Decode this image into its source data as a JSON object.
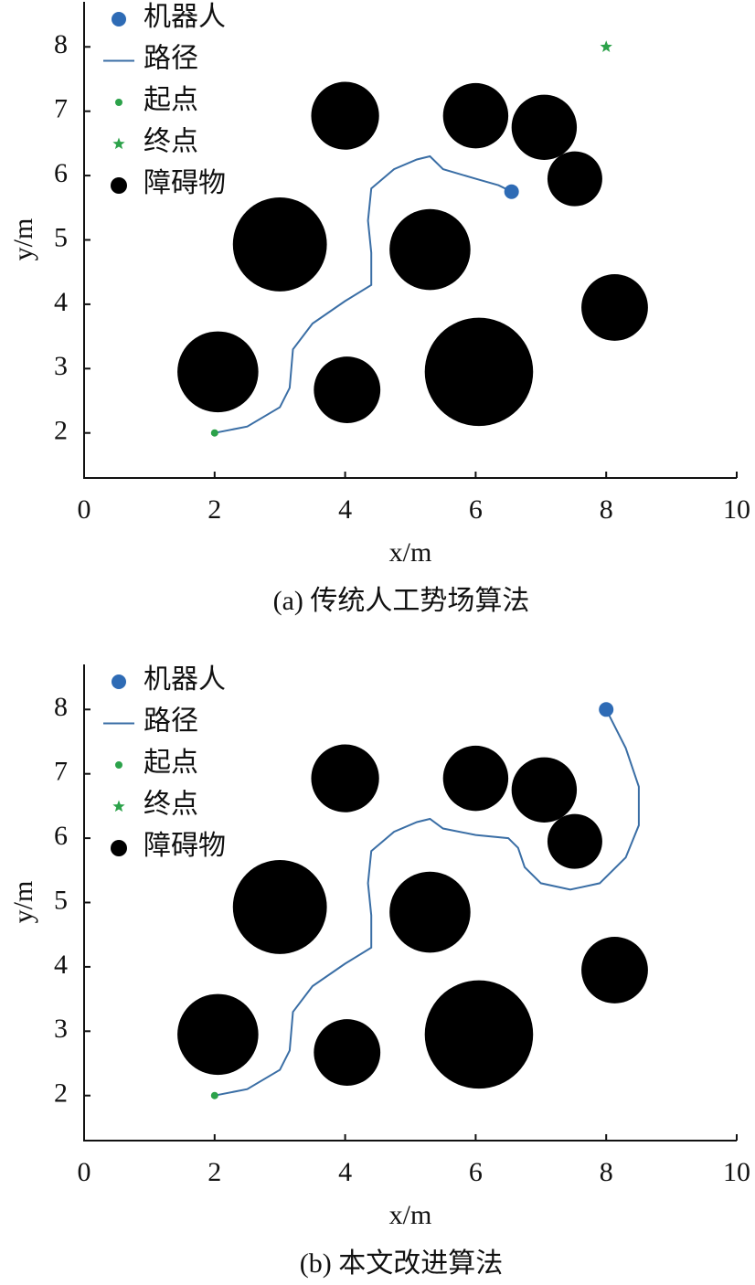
{
  "chart_data": [
    {
      "type": "path-planning",
      "caption": "(a) 传统人工势场算法",
      "xlabel": "x/m",
      "ylabel": "y/m",
      "xlim": [
        0,
        10
      ],
      "ylim": [
        1.3,
        8.7
      ],
      "xticks": [
        0,
        2,
        4,
        6,
        8,
        10
      ],
      "yticks": [
        2,
        3,
        4,
        5,
        6,
        7,
        8
      ],
      "legend": "upper left",
      "series": [
        {
          "name": "机器人",
          "marker": "circle",
          "color": "#2e6bb5",
          "x": [
            6.55
          ],
          "values": [
            5.75
          ]
        },
        {
          "name": "路径",
          "marker": "line",
          "color": "#3a6ea5",
          "x": [
            2,
            2.5,
            3.0,
            3.15,
            3.2,
            3.5,
            4.0,
            4.4,
            4.4,
            4.35,
            4.4,
            4.75,
            5.1,
            5.3,
            5.5,
            6.0,
            6.35,
            6.55
          ],
          "values": [
            2,
            2.1,
            2.4,
            2.7,
            3.3,
            3.7,
            4.05,
            4.3,
            4.8,
            5.3,
            5.8,
            6.1,
            6.25,
            6.3,
            6.1,
            5.95,
            5.85,
            5.75
          ]
        },
        {
          "name": "起点",
          "marker": "dot",
          "color": "#2ca24a",
          "x": [
            2
          ],
          "values": [
            2
          ]
        },
        {
          "name": "终点",
          "marker": "star",
          "color": "#2ca24a",
          "x": [
            8
          ],
          "values": [
            8
          ]
        },
        {
          "name": "障碍物",
          "marker": "disc",
          "color": "#000000",
          "x": [
            4.0,
            6.0,
            7.05,
            7.52,
            3.0,
            5.3,
            8.13,
            2.05,
            4.03,
            6.05
          ],
          "values": [
            6.93,
            6.93,
            6.75,
            5.95,
            4.93,
            4.85,
            3.95,
            2.95,
            2.67,
            2.95
          ],
          "sizes": [
            0.52,
            0.5,
            0.5,
            0.42,
            0.72,
            0.62,
            0.51,
            0.62,
            0.51,
            0.83
          ]
        }
      ]
    },
    {
      "type": "path-planning",
      "caption": "(b) 本文改进算法",
      "xlabel": "x/m",
      "ylabel": "y/m",
      "xlim": [
        0,
        10
      ],
      "ylim": [
        1.3,
        8.7
      ],
      "xticks": [
        0,
        2,
        4,
        6,
        8,
        10
      ],
      "yticks": [
        2,
        3,
        4,
        5,
        6,
        7,
        8
      ],
      "legend": "upper left",
      "series": [
        {
          "name": "机器人",
          "marker": "circle",
          "color": "#2e6bb5",
          "x": [
            8.0
          ],
          "values": [
            8.0
          ]
        },
        {
          "name": "路径",
          "marker": "line",
          "color": "#3a6ea5",
          "x": [
            2,
            2.5,
            3.0,
            3.15,
            3.2,
            3.5,
            4.0,
            4.4,
            4.4,
            4.35,
            4.4,
            4.75,
            5.1,
            5.3,
            5.5,
            6.0,
            6.5,
            6.65,
            6.75,
            7.0,
            7.45,
            7.9,
            8.3,
            8.5,
            8.5,
            8.3,
            8.0
          ],
          "values": [
            2,
            2.1,
            2.4,
            2.7,
            3.3,
            3.7,
            4.05,
            4.3,
            4.8,
            5.3,
            5.8,
            6.1,
            6.25,
            6.3,
            6.15,
            6.05,
            6.0,
            5.85,
            5.55,
            5.3,
            5.2,
            5.3,
            5.7,
            6.2,
            6.8,
            7.4,
            8.0
          ]
        },
        {
          "name": "起点",
          "marker": "dot",
          "color": "#2ca24a",
          "x": [
            2
          ],
          "values": [
            2
          ]
        },
        {
          "name": "终点",
          "marker": "star",
          "color": "#2ca24a",
          "x": [
            8
          ],
          "values": [
            8
          ]
        },
        {
          "name": "障碍物",
          "marker": "disc",
          "color": "#000000",
          "x": [
            4.0,
            6.0,
            7.05,
            7.52,
            3.0,
            5.3,
            8.13,
            2.05,
            4.03,
            6.05
          ],
          "values": [
            6.93,
            6.93,
            6.75,
            5.95,
            4.93,
            4.85,
            3.95,
            2.95,
            2.67,
            2.95
          ],
          "sizes": [
            0.52,
            0.5,
            0.5,
            0.42,
            0.72,
            0.62,
            0.51,
            0.62,
            0.51,
            0.83
          ]
        }
      ]
    }
  ]
}
